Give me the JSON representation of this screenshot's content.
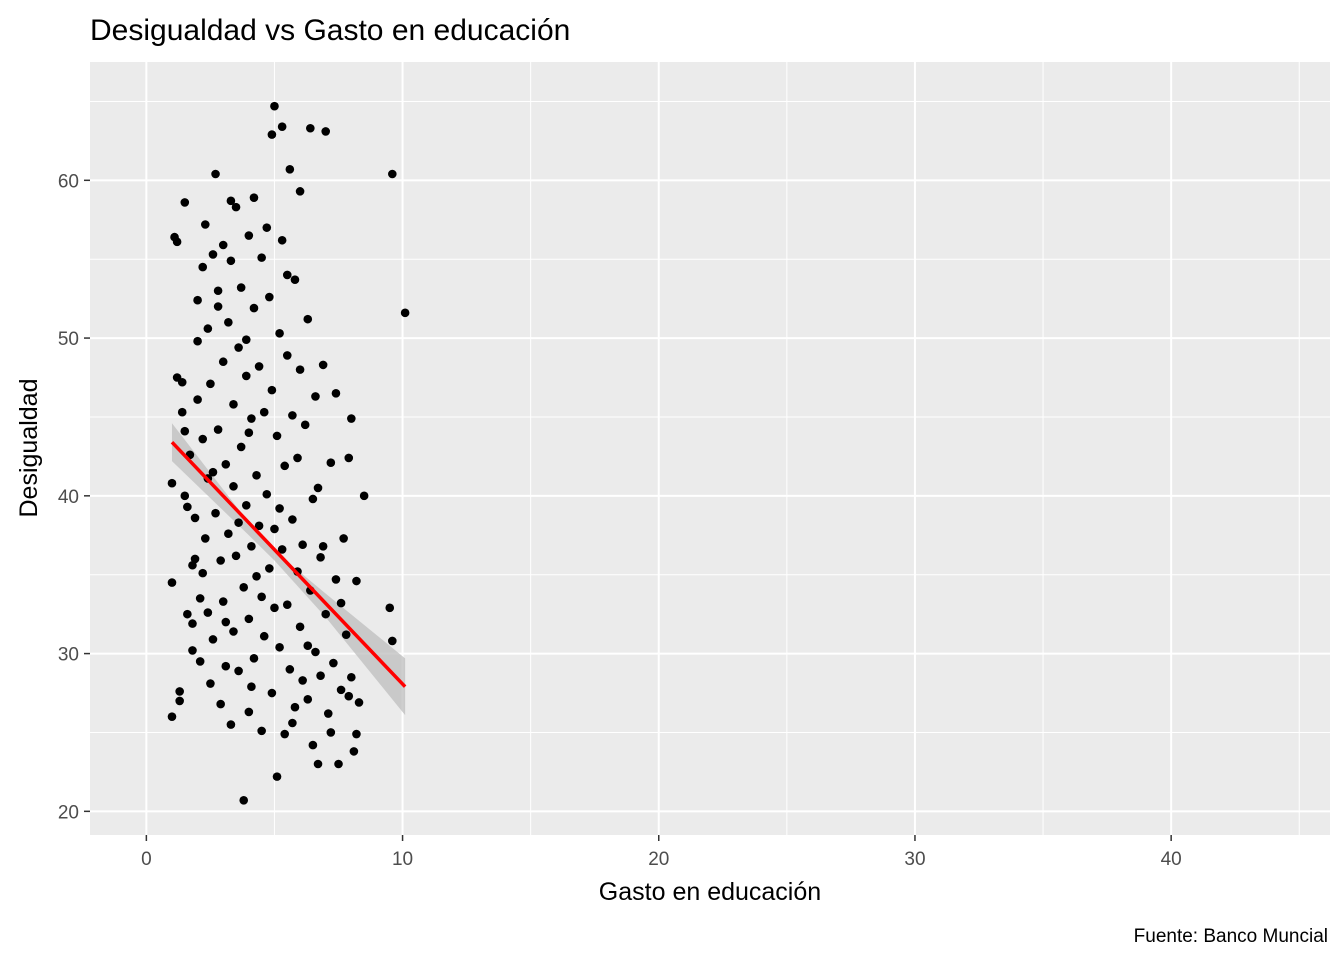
{
  "chart_data": {
    "type": "scatter",
    "title": "Desigualdad vs Gasto en educación",
    "xlabel": "Gasto en educación",
    "ylabel": "Desigualdad",
    "caption": "Fuente: Banco Muncial",
    "xlim": [
      -2.2,
      46.2
    ],
    "ylim": [
      18.5,
      67.5
    ],
    "x_ticks": [
      0,
      10,
      20,
      30,
      40
    ],
    "x_minor": [
      5,
      15,
      25,
      35,
      45
    ],
    "y_ticks": [
      20,
      30,
      40,
      50,
      60
    ],
    "y_minor": [
      25,
      35,
      45,
      55,
      65
    ],
    "grid": true,
    "legend": "none",
    "colors": {
      "panel": "#ebebeb",
      "grid": "#ffffff",
      "points": "#000000",
      "trend": "#ff0000",
      "band": "#bdbdbd"
    },
    "trend_line": {
      "x": [
        1.0,
        10.1
      ],
      "y": [
        43.4,
        27.9
      ]
    },
    "confidence_band": {
      "x": [
        1.0,
        4.0,
        5.0,
        7.0,
        10.1
      ],
      "lower": [
        42.2,
        37.5,
        35.9,
        32.3,
        26.1
      ],
      "upper": [
        44.6,
        38.3,
        36.5,
        33.8,
        29.7
      ]
    },
    "points": [
      [
        1.0,
        26.0
      ],
      [
        1.0,
        34.5
      ],
      [
        1.0,
        40.8
      ],
      [
        1.1,
        56.4
      ],
      [
        1.2,
        56.1
      ],
      [
        1.2,
        47.5
      ],
      [
        1.3,
        27.6
      ],
      [
        1.3,
        27.0
      ],
      [
        1.4,
        47.2
      ],
      [
        1.4,
        45.3
      ],
      [
        1.5,
        58.6
      ],
      [
        1.5,
        44.1
      ],
      [
        1.5,
        40.0
      ],
      [
        1.6,
        39.3
      ],
      [
        1.6,
        32.5
      ],
      [
        1.7,
        42.6
      ],
      [
        1.8,
        31.9
      ],
      [
        1.8,
        35.6
      ],
      [
        1.9,
        36.0
      ],
      [
        1.9,
        38.6
      ],
      [
        2.0,
        52.4
      ],
      [
        2.0,
        49.8
      ],
      [
        2.0,
        46.1
      ],
      [
        2.1,
        33.5
      ],
      [
        2.1,
        29.5
      ],
      [
        2.2,
        43.6
      ],
      [
        2.2,
        54.5
      ],
      [
        2.3,
        57.2
      ],
      [
        2.3,
        37.3
      ],
      [
        2.4,
        50.6
      ],
      [
        2.4,
        32.6
      ],
      [
        2.5,
        28.1
      ],
      [
        2.5,
        47.1
      ],
      [
        2.6,
        55.3
      ],
      [
        2.6,
        41.5
      ],
      [
        2.6,
        30.9
      ],
      [
        2.7,
        60.4
      ],
      [
        2.7,
        38.9
      ],
      [
        2.8,
        52.0
      ],
      [
        2.8,
        44.2
      ],
      [
        2.9,
        26.8
      ],
      [
        2.9,
        35.9
      ],
      [
        3.0,
        48.5
      ],
      [
        3.0,
        33.3
      ],
      [
        3.0,
        55.9
      ],
      [
        3.1,
        42.0
      ],
      [
        3.1,
        29.2
      ],
      [
        3.2,
        51.0
      ],
      [
        3.2,
        37.6
      ],
      [
        3.3,
        54.9
      ],
      [
        3.3,
        25.5
      ],
      [
        3.4,
        45.8
      ],
      [
        3.4,
        40.6
      ],
      [
        3.4,
        31.4
      ],
      [
        3.5,
        58.3
      ],
      [
        3.5,
        36.2
      ],
      [
        3.6,
        49.4
      ],
      [
        3.6,
        28.9
      ],
      [
        3.7,
        43.1
      ],
      [
        3.7,
        53.2
      ],
      [
        3.8,
        20.7
      ],
      [
        3.8,
        34.2
      ],
      [
        3.9,
        47.6
      ],
      [
        3.9,
        39.4
      ],
      [
        4.0,
        56.5
      ],
      [
        4.0,
        26.3
      ],
      [
        4.0,
        32.2
      ],
      [
        4.1,
        44.9
      ],
      [
        4.1,
        36.8
      ],
      [
        4.2,
        51.9
      ],
      [
        4.2,
        29.7
      ],
      [
        4.3,
        41.3
      ],
      [
        4.3,
        34.9
      ],
      [
        4.4,
        48.2
      ],
      [
        4.4,
        38.1
      ],
      [
        4.5,
        55.1
      ],
      [
        4.5,
        25.1
      ],
      [
        4.5,
        33.6
      ],
      [
        4.6,
        45.3
      ],
      [
        4.6,
        31.1
      ],
      [
        4.7,
        57.0
      ],
      [
        4.7,
        40.1
      ],
      [
        4.8,
        52.6
      ],
      [
        4.8,
        35.4
      ],
      [
        4.9,
        27.5
      ],
      [
        4.9,
        46.7
      ],
      [
        5.0,
        64.7
      ],
      [
        5.0,
        37.9
      ],
      [
        5.0,
        32.9
      ],
      [
        5.1,
        22.2
      ],
      [
        5.1,
        43.8
      ],
      [
        5.2,
        50.3
      ],
      [
        5.2,
        30.4
      ],
      [
        5.3,
        56.2
      ],
      [
        5.3,
        36.6
      ],
      [
        5.4,
        24.9
      ],
      [
        5.4,
        41.9
      ],
      [
        5.5,
        48.9
      ],
      [
        5.5,
        33.1
      ],
      [
        5.6,
        60.7
      ],
      [
        5.6,
        29.0
      ],
      [
        5.7,
        45.1
      ],
      [
        5.7,
        38.5
      ],
      [
        5.8,
        53.7
      ],
      [
        5.8,
        26.6
      ],
      [
        5.9,
        35.2
      ],
      [
        5.9,
        42.4
      ],
      [
        6.0,
        48.0
      ],
      [
        6.0,
        31.7
      ],
      [
        6.1,
        28.3
      ],
      [
        6.1,
        36.9
      ],
      [
        6.2,
        44.5
      ],
      [
        6.3,
        51.2
      ],
      [
        6.3,
        27.1
      ],
      [
        6.4,
        63.3
      ],
      [
        6.4,
        34.0
      ],
      [
        6.5,
        39.8
      ],
      [
        6.6,
        30.1
      ],
      [
        6.6,
        46.3
      ],
      [
        6.7,
        23.0
      ],
      [
        6.8,
        36.1
      ],
      [
        6.8,
        28.6
      ],
      [
        6.9,
        48.3
      ],
      [
        7.0,
        32.5
      ],
      [
        7.0,
        63.1
      ],
      [
        7.1,
        26.2
      ],
      [
        7.2,
        42.1
      ],
      [
        7.3,
        29.4
      ],
      [
        7.4,
        34.7
      ],
      [
        7.4,
        46.5
      ],
      [
        7.5,
        23.0
      ],
      [
        7.6,
        27.7
      ],
      [
        7.7,
        37.3
      ],
      [
        7.8,
        31.2
      ],
      [
        7.9,
        42.4
      ],
      [
        8.0,
        44.9
      ],
      [
        8.0,
        28.5
      ],
      [
        8.1,
        23.8
      ],
      [
        8.2,
        34.6
      ],
      [
        8.3,
        26.9
      ],
      [
        8.5,
        40.0
      ],
      [
        9.5,
        32.9
      ],
      [
        9.6,
        30.8
      ],
      [
        9.6,
        60.4
      ],
      [
        10.1,
        51.6
      ],
      [
        5.3,
        63.4
      ],
      [
        4.9,
        62.9
      ],
      [
        6.0,
        59.3
      ],
      [
        4.2,
        58.9
      ],
      [
        3.3,
        58.7
      ],
      [
        5.5,
        54.0
      ],
      [
        2.8,
        53.0
      ],
      [
        6.9,
        36.8
      ],
      [
        7.6,
        33.2
      ],
      [
        6.3,
        30.5
      ],
      [
        3.6,
        38.3
      ],
      [
        2.4,
        41.1
      ],
      [
        1.8,
        30.2
      ],
      [
        4.0,
        44.0
      ],
      [
        5.2,
        39.2
      ],
      [
        2.2,
        35.1
      ],
      [
        3.1,
        32.0
      ],
      [
        4.1,
        27.9
      ],
      [
        5.7,
        25.6
      ],
      [
        6.5,
        24.2
      ],
      [
        7.2,
        25.0
      ],
      [
        7.9,
        27.3
      ],
      [
        8.2,
        24.9
      ],
      [
        6.7,
        40.5
      ],
      [
        3.9,
        49.9
      ]
    ]
  }
}
